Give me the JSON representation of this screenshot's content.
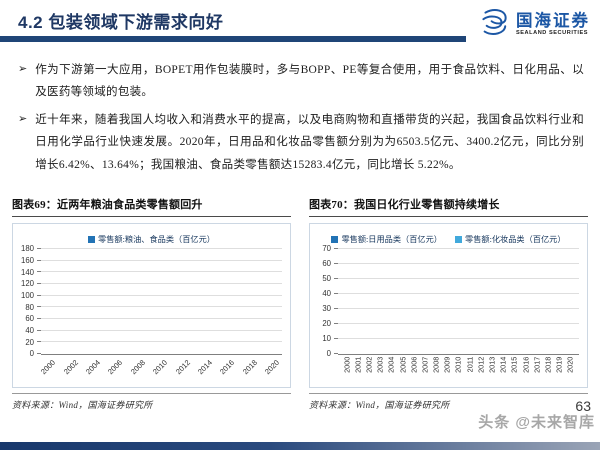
{
  "header": {
    "title": "4.2 包装领域下游需求向好",
    "logo_cn": "国海证券",
    "logo_en": "SEALAND SECURITIES"
  },
  "bullets": [
    {
      "marker": "➢",
      "text": "作为下游第一大应用，BOPET用作包装膜时，多与BOPP、PE等复合使用，用于食品饮料、日化用品、以及医药等领域的包装。"
    },
    {
      "marker": "➢",
      "text": "近十年来，随着我国人均收入和消费水平的提高，以及电商购物和直播带货的兴起，我国食品饮料行业和日用化学品行业快速发展。2020年，日用品和化妆品零售额分别为为6503.5亿元、3400.2亿元，同比分别增长6.42%、13.64%；我国粮油、食品类零售额达15283.4亿元，同比增长 5.22%。"
    }
  ],
  "figures": [
    {
      "caption": "图表69：近两年粮油食品类零售额回升",
      "source": "资料来源：Wind，国海证券研究所"
    },
    {
      "caption": "图表70：我国日化行业零售额持续增长",
      "source": "资料来源：Wind，国海证券研究所"
    }
  ],
  "chart_data": [
    {
      "type": "bar",
      "categories": [
        "2000",
        "2001",
        "2002",
        "2003",
        "2004",
        "2005",
        "2006",
        "2007",
        "2008",
        "2009",
        "2010",
        "2011",
        "2012",
        "2013",
        "2014",
        "2015",
        "2016",
        "2017",
        "2018",
        "2019",
        "2020"
      ],
      "series": [
        {
          "name": "零售额:粮油、食品类（百亿元）",
          "color": "#2273b5",
          "values": [
            8,
            9,
            11,
            13,
            15,
            19,
            23,
            28,
            34,
            40,
            49,
            70,
            85,
            100,
            118,
            135,
            150,
            153,
            137,
            145,
            153
          ]
        }
      ],
      "title": "近两年粮油食品类零售额回升",
      "xlabel": "",
      "ylabel": "",
      "ylim": [
        0,
        180
      ],
      "ystep": 20,
      "grid": true,
      "legend_position": "top",
      "x_label_every": 2,
      "x_label_rotate": -45
    },
    {
      "type": "bar",
      "categories": [
        "2000",
        "2001",
        "2002",
        "2003",
        "2004",
        "2005",
        "2006",
        "2007",
        "2008",
        "2009",
        "2010",
        "2011",
        "2012",
        "2013",
        "2014",
        "2015",
        "2016",
        "2017",
        "2018",
        "2019",
        "2020"
      ],
      "series": [
        {
          "name": "零售额:日用品类（百亿元）",
          "color": "#2273b5",
          "values": [
            4.2,
            4.5,
            4.5,
            5.5,
            6,
            7,
            8.5,
            10.5,
            12.5,
            16,
            20.5,
            27.5,
            34,
            39.5,
            44,
            48.5,
            54.5,
            55,
            54,
            61,
            65
          ]
        },
        {
          "name": "零售额:化妆品类（百亿元）",
          "color": "#41a9dc",
          "values": [
            2,
            2,
            2.2,
            2.5,
            3.5,
            3.8,
            4,
            4.8,
            6,
            7.5,
            8.8,
            11,
            13.3,
            16.2,
            18.5,
            20.5,
            22.2,
            25,
            26.2,
            30,
            34
          ]
        }
      ],
      "title": "我国日化行业零售额持续增长",
      "xlabel": "",
      "ylabel": "",
      "ylim": [
        0,
        70
      ],
      "ystep": 10,
      "grid": true,
      "legend_position": "top",
      "x_label_every": 1,
      "x_label_rotate": -90
    }
  ],
  "footer": {
    "page_number": "63",
    "watermark": "头条 @未来智库"
  },
  "colors": {
    "accent_navy": "#1f3864",
    "rule_navy": "#1f4577",
    "logo_blue": "#1c57a5",
    "bar_dark_blue": "#2273b5",
    "bar_light_blue": "#41a9dc"
  }
}
